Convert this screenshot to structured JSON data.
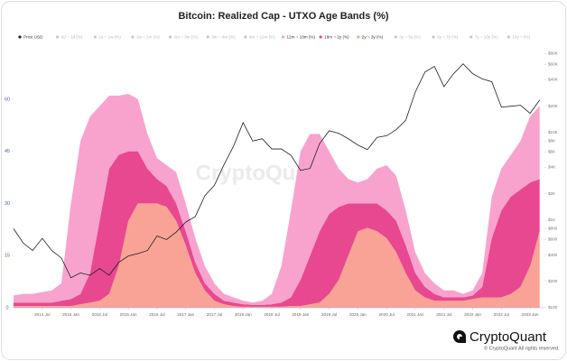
{
  "chart_data": {
    "type": "area",
    "title": "Bitcoin: Realized Cap - UTXO Age Bands (%)",
    "legend_position": "top",
    "watermark": "CryptoQuant",
    "brand": "CryptoQuant",
    "copyright": "© CryptoQuant All rights reserved.",
    "x": [
      "2014-01",
      "2014-03",
      "2014-05",
      "2014-07",
      "2014-09",
      "2014-11",
      "2015-01",
      "2015-03",
      "2015-05",
      "2015-07",
      "2015-09",
      "2015-11",
      "2016-01",
      "2016-03",
      "2016-05",
      "2016-07",
      "2016-09",
      "2016-11",
      "2017-01",
      "2017-03",
      "2017-05",
      "2017-07",
      "2017-09",
      "2017-11",
      "2018-01",
      "2018-03",
      "2018-05",
      "2018-07",
      "2018-09",
      "2018-11",
      "2019-01",
      "2019-03",
      "2019-05",
      "2019-07",
      "2019-09",
      "2019-11",
      "2020-01",
      "2020-03",
      "2020-05",
      "2020-07",
      "2020-09",
      "2020-11",
      "2021-01",
      "2021-03",
      "2021-05",
      "2021-07",
      "2021-09",
      "2021-11",
      "2022-01",
      "2022-03",
      "2022-05",
      "2022-07",
      "2022-09",
      "2022-11",
      "2023-01",
      "2023-03"
    ],
    "xlim": [
      "2014-01",
      "2023-04"
    ],
    "xticks": [
      {
        "value": "2014-07",
        "label": "2014 Jul"
      },
      {
        "value": "2015-01",
        "label": "2015 Jan"
      },
      {
        "value": "2015-07",
        "label": "2015 Jul"
      },
      {
        "value": "2016-01",
        "label": "2016 Jan"
      },
      {
        "value": "2016-07",
        "label": "2016 Jul"
      },
      {
        "value": "2017-01",
        "label": "2017 Jan"
      },
      {
        "value": "2017-07",
        "label": "2017 Jul"
      },
      {
        "value": "2018-01",
        "label": "2018 Jan"
      },
      {
        "value": "2018-07",
        "label": "2018 Jul"
      },
      {
        "value": "2019-01",
        "label": "2019 Jan"
      },
      {
        "value": "2019-07",
        "label": "2019 Jul"
      },
      {
        "value": "2020-01",
        "label": "2020 Jan"
      },
      {
        "value": "2020-07",
        "label": "2020 Jul"
      },
      {
        "value": "2021-01",
        "label": "2021 Jan"
      },
      {
        "value": "2021-07",
        "label": "2021 Jul"
      },
      {
        "value": "2022-01",
        "label": "2022 Jan"
      },
      {
        "value": "2022-07",
        "label": "2022 Jul"
      },
      {
        "value": "2023-01",
        "label": "2023 Jan"
      }
    ],
    "ylim": [
      0,
      75
    ],
    "yticks": [
      0,
      15,
      30,
      45,
      60
    ],
    "y2scale": "log",
    "y2lim": [
      100,
      95000
    ],
    "y2ticks": [
      {
        "value": 100,
        "label": "$100"
      },
      {
        "value": 200,
        "label": "$200"
      },
      {
        "value": 400,
        "label": "$400"
      },
      {
        "value": 600,
        "label": "$600"
      },
      {
        "value": 800,
        "label": "$800"
      },
      {
        "value": 1000,
        "label": "$1K"
      },
      {
        "value": 2000,
        "label": "$2K"
      },
      {
        "value": 4000,
        "label": "$4K"
      },
      {
        "value": 6000,
        "label": "$6K"
      },
      {
        "value": 8000,
        "label": "$8K"
      },
      {
        "value": 10000,
        "label": "$10K"
      },
      {
        "value": 20000,
        "label": "$20K"
      },
      {
        "value": 40000,
        "label": "$40K"
      },
      {
        "value": 60000,
        "label": "$60K"
      },
      {
        "value": 80000,
        "label": "$80K"
      }
    ],
    "series": [
      {
        "name": "Price USD",
        "type": "line",
        "axis": "y2",
        "color": "#1f1f1f",
        "values": [
          800,
          550,
          450,
          620,
          450,
          370,
          220,
          250,
          235,
          280,
          235,
          330,
          390,
          415,
          450,
          660,
          600,
          730,
          950,
          1100,
          1900,
          2500,
          4300,
          7000,
          13000,
          8000,
          8500,
          6500,
          6500,
          5500,
          3700,
          3900,
          7500,
          10500,
          9800,
          8500,
          7200,
          6400,
          8800,
          9200,
          10800,
          13800,
          29000,
          49000,
          57000,
          33500,
          47000,
          61000,
          47000,
          41000,
          38000,
          19500,
          20000,
          20500,
          16600,
          23500
        ]
      },
      {
        "name": "0d ~ 1d (%)",
        "color": "#c8c8c8",
        "visible": false
      },
      {
        "name": "1d ~ 1w (%)",
        "color": "#c8c8c8",
        "visible": false
      },
      {
        "name": "1w ~ 1m (%)",
        "color": "#c8c8c8",
        "visible": false
      },
      {
        "name": "1m ~ 3m (%)",
        "color": "#c8c8c8",
        "visible": false
      },
      {
        "name": "3m ~ 6m (%)",
        "color": "#c8c8c8",
        "visible": false
      },
      {
        "name": "6m ~ 12m (%)",
        "color": "#c8c8c8",
        "visible": false
      },
      {
        "name": "12m ~ 18m (%)",
        "color": "#f8a3cd",
        "values": [
          2,
          2.5,
          2.5,
          3,
          3.5,
          5,
          27.5,
          44,
          45,
          33,
          21,
          17,
          16.5,
          15,
          10,
          6,
          6,
          9,
          8,
          7,
          5,
          3,
          2,
          1.5,
          1,
          0.7,
          1.2,
          3,
          10.5,
          25,
          37,
          35,
          28,
          18,
          11,
          7,
          6,
          7,
          10,
          13,
          13,
          10,
          6,
          4,
          3,
          2,
          2,
          1,
          1.5,
          4,
          12,
          12,
          12,
          14,
          19,
          21
        ]
      },
      {
        "name": "18m ~ 2y (%)",
        "color": "#e8488f",
        "values": [
          1,
          1,
          1,
          1,
          1,
          1.5,
          2,
          3,
          8.5,
          23,
          36,
          32,
          20,
          15,
          10,
          7,
          6,
          5,
          4,
          3,
          2,
          2,
          1,
          1,
          0.7,
          0.5,
          0.5,
          0.7,
          1.2,
          2.5,
          7.5,
          14,
          20.5,
          23,
          21,
          15,
          8,
          7,
          8,
          8,
          9,
          8,
          5,
          3,
          2,
          1,
          1,
          1,
          1,
          3,
          17,
          25,
          28,
          28,
          24,
          15
        ]
      },
      {
        "name": "2y ~ 3y (%)",
        "color": "#f8a395",
        "values": [
          0.5,
          0.5,
          0.5,
          0.5,
          0.5,
          0.5,
          0.5,
          1,
          1.5,
          2,
          4,
          12,
          25,
          30,
          30,
          30,
          29,
          25,
          18,
          10,
          5,
          2,
          1,
          0.5,
          0.3,
          0.3,
          0.3,
          0.3,
          0.3,
          0.5,
          0.5,
          1,
          1.5,
          4,
          8,
          15,
          22,
          23,
          22,
          20,
          16,
          10,
          5,
          3,
          2,
          2,
          2,
          2,
          2.5,
          3,
          3,
          3,
          4,
          6,
          12,
          22
        ]
      },
      {
        "name": "3y ~ 5y (%)",
        "color": "#c8c8c8",
        "visible": false
      },
      {
        "name": "5y ~ 7y (%)",
        "color": "#c8c8c8",
        "visible": false
      },
      {
        "name": "7y ~ 10y (%)",
        "color": "#c8c8c8",
        "visible": false
      },
      {
        "name": "10y ~ (%)",
        "color": "#c8c8c8",
        "visible": false
      }
    ]
  }
}
